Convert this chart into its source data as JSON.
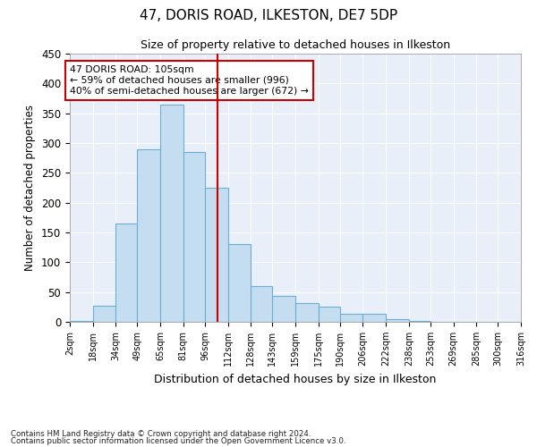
{
  "title1": "47, DORIS ROAD, ILKESTON, DE7 5DP",
  "title2": "Size of property relative to detached houses in Ilkeston",
  "xlabel": "Distribution of detached houses by size in Ilkeston",
  "ylabel": "Number of detached properties",
  "footnote1": "Contains HM Land Registry data © Crown copyright and database right 2024.",
  "footnote2": "Contains public sector information licensed under the Open Government Licence v3.0.",
  "annotation_line1": "47 DORIS ROAD: 105sqm",
  "annotation_line2": "← 59% of detached houses are smaller (996)",
  "annotation_line3": "40% of semi-detached houses are larger (672) →",
  "bar_edges": [
    2,
    18,
    34,
    49,
    65,
    81,
    96,
    112,
    128,
    143,
    159,
    175,
    190,
    206,
    222,
    238,
    253,
    269,
    285,
    300,
    316
  ],
  "bar_heights": [
    2,
    27,
    165,
    290,
    365,
    285,
    225,
    130,
    60,
    43,
    32,
    25,
    13,
    13,
    5,
    2,
    0,
    0,
    0,
    0
  ],
  "bar_color": "#c5ddf0",
  "bar_edge_color": "#6aaed6",
  "vline_color": "#cc0000",
  "vline_x": 105,
  "annotation_box_edge_color": "#cc0000",
  "bg_color": "#e8eff9",
  "grid_color": "#ffffff",
  "fig_bg_color": "#ffffff",
  "ylim": [
    0,
    450
  ],
  "yticks": [
    0,
    50,
    100,
    150,
    200,
    250,
    300,
    350,
    400,
    450
  ]
}
